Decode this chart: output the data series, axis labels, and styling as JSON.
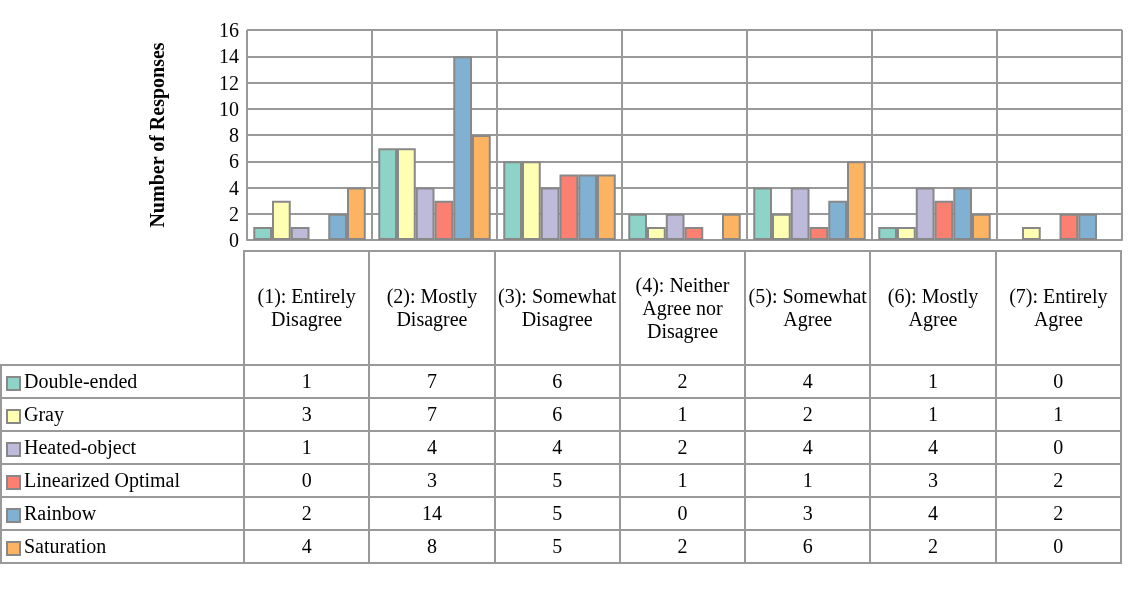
{
  "chart_data": {
    "type": "bar",
    "ylabel": "Number of Responses",
    "categories": [
      "(1): Entirely Disagree",
      "(2): Mostly Disagree",
      "(3): Somewhat Disagree",
      "(4): Neither Agree nor Disagree",
      "(5): Somewhat Agree",
      "(6): Mostly Agree",
      "(7): Entirely Agree"
    ],
    "series": [
      {
        "name": "Double-ended",
        "color": "#8dd3c7",
        "values": [
          1,
          7,
          6,
          2,
          4,
          1,
          0
        ]
      },
      {
        "name": "Gray",
        "color": "#ffffb3",
        "values": [
          3,
          7,
          6,
          1,
          2,
          1,
          1
        ]
      },
      {
        "name": "Heated-object",
        "color": "#bebada",
        "values": [
          1,
          4,
          4,
          2,
          4,
          4,
          0
        ]
      },
      {
        "name": "Linearized Optimal",
        "color": "#fb8072",
        "values": [
          0,
          3,
          5,
          1,
          1,
          3,
          2
        ]
      },
      {
        "name": "Rainbow",
        "color": "#80b1d3",
        "values": [
          2,
          14,
          5,
          0,
          3,
          4,
          2
        ]
      },
      {
        "name": "Saturation",
        "color": "#fdb462",
        "values": [
          4,
          8,
          5,
          2,
          6,
          2,
          0
        ]
      }
    ],
    "ylim": [
      0,
      16
    ],
    "yticks": [
      0,
      2,
      4,
      6,
      8,
      10,
      12,
      14,
      16
    ],
    "grid": true,
    "legend": "bottom",
    "data_labels": true
  }
}
